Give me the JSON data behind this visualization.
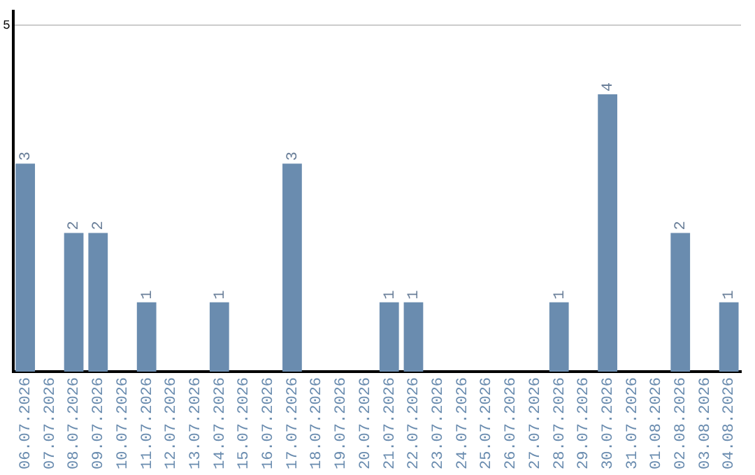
{
  "chart_data": {
    "type": "bar",
    "categories": [
      "06.07.2026",
      "07.07.2026",
      "08.07.2026",
      "09.07.2026",
      "10.07.2026",
      "11.07.2026",
      "12.07.2026",
      "13.07.2026",
      "14.07.2026",
      "15.07.2026",
      "16.07.2026",
      "17.07.2026",
      "18.07.2026",
      "19.07.2026",
      "20.07.2026",
      "21.07.2026",
      "22.07.2026",
      "23.07.2026",
      "24.07.2026",
      "25.07.2026",
      "26.07.2026",
      "27.07.2026",
      "28.07.2026",
      "29.07.2026",
      "30.07.2026",
      "31.07.2026",
      "01.08.2026",
      "02.08.2026",
      "03.08.2026",
      "04.08.2026"
    ],
    "values": [
      3,
      0,
      2,
      2,
      0,
      1,
      0,
      0,
      1,
      0,
      0,
      3,
      0,
      0,
      0,
      1,
      1,
      0,
      0,
      0,
      0,
      0,
      1,
      0,
      4,
      0,
      0,
      2,
      0,
      1
    ],
    "value_labels": [
      "3",
      null,
      "2",
      "2",
      null,
      "1",
      null,
      null,
      "1",
      null,
      null,
      "3",
      null,
      null,
      null,
      "1",
      "1",
      null,
      null,
      null,
      null,
      null,
      "1",
      null,
      "4",
      null,
      null,
      "2",
      null,
      "1"
    ],
    "color": "#6a8caf",
    "ylim": [
      0,
      5.2
    ],
    "yticks": [
      5
    ],
    "grid": "y",
    "legend": false
  }
}
